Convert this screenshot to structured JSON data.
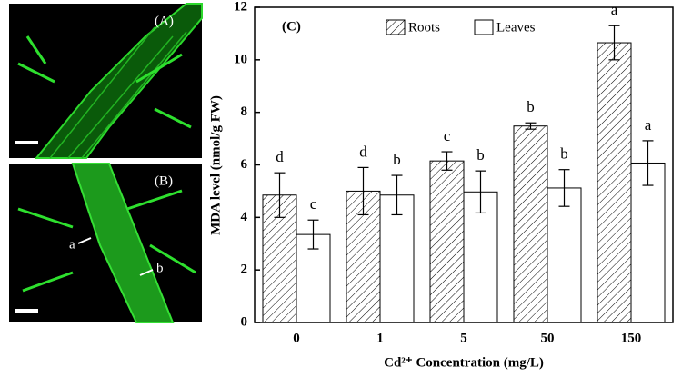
{
  "panels": [
    {
      "label": "(A)"
    },
    {
      "label": "(B)",
      "annotations": [
        "a",
        "b"
      ]
    }
  ],
  "chart_data": {
    "type": "bar",
    "title": "(C)",
    "ylabel": "MDA level (nmol/g FW)",
    "xlabel": "Cd²⁺ Concentration (mg/L)",
    "categories": [
      "0",
      "1",
      "5",
      "50",
      "150"
    ],
    "series": [
      {
        "name": "Roots",
        "color": "#000000",
        "pattern": "hatch",
        "values": [
          4.85,
          5.0,
          6.15,
          7.48,
          10.65
        ],
        "errors": [
          0.85,
          0.9,
          0.35,
          0.12,
          0.65
        ],
        "significance": [
          "d",
          "d",
          "c",
          "b",
          "a"
        ]
      },
      {
        "name": "Leaves",
        "color": "#000000",
        "pattern": "none",
        "values": [
          3.35,
          4.85,
          4.97,
          5.12,
          6.07
        ],
        "errors": [
          0.55,
          0.75,
          0.8,
          0.7,
          0.85
        ],
        "significance": [
          "c",
          "b",
          "b",
          "b",
          "a"
        ]
      }
    ],
    "ylim": [
      0,
      12
    ],
    "yticks": [
      0,
      2,
      4,
      6,
      8,
      10,
      12
    ],
    "legend": "top"
  }
}
